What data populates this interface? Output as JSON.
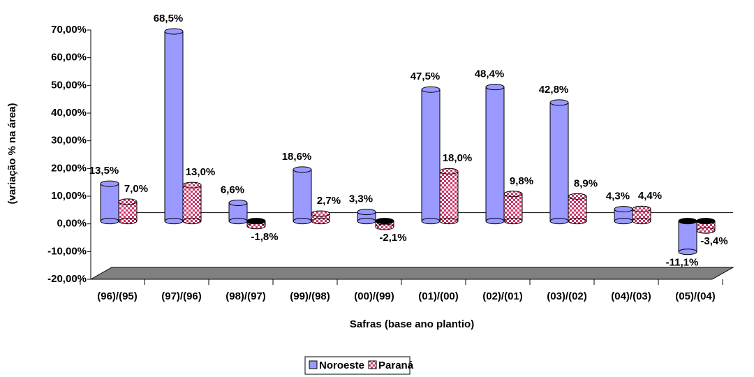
{
  "chart_data": {
    "type": "bar3d",
    "y_axis_label": "(variação % na área)",
    "x_axis_label": "Safras (base ano plantio)",
    "categories": [
      "(96)/(95)",
      "(97)/(96)",
      "(98)/(97)",
      "(99)/(98)",
      "(00)/(99)",
      "(01)/(00)",
      "(02)/(01)",
      "(03)/(02)",
      "(04)/(03)",
      "(05)/(04)"
    ],
    "series": [
      {
        "name": "Noroeste",
        "color": "#9999ff",
        "values": [
          13.5,
          68.5,
          6.6,
          18.6,
          3.3,
          47.5,
          48.4,
          42.8,
          4.3,
          -11.1
        ],
        "value_labels": [
          "13,5%",
          "68,5%",
          "6,6%",
          "18,6%",
          "3,3%",
          "47,5%",
          "48,4%",
          "42,8%",
          "4,3%",
          "-11,1%"
        ]
      },
      {
        "name": "Paraná",
        "color": "#cc3366",
        "values": [
          7.0,
          13.0,
          -1.8,
          2.7,
          -2.1,
          18.0,
          9.8,
          8.9,
          4.4,
          -3.4
        ],
        "value_labels": [
          "7,0%",
          "13,0%",
          "-1,8%",
          "2,7%",
          "-2,1%",
          "18,0%",
          "9,8%",
          "8,9%",
          "4,4%",
          "-3,4%"
        ]
      }
    ],
    "ylim": [
      -20,
      70
    ],
    "yticks": [
      {
        "value": -20,
        "label": "-20,00%"
      },
      {
        "value": -10,
        "label": "-10,00%"
      },
      {
        "value": 0,
        "label": "0,00%"
      },
      {
        "value": 10,
        "label": "10,00%"
      },
      {
        "value": 20,
        "label": "20,00%"
      },
      {
        "value": 30,
        "label": "30,00%"
      },
      {
        "value": 40,
        "label": "40,00%"
      },
      {
        "value": 50,
        "label": "50,00%"
      },
      {
        "value": 60,
        "label": "60,00%"
      },
      {
        "value": 70,
        "label": "70,00%"
      }
    ],
    "legend": "bottom"
  }
}
